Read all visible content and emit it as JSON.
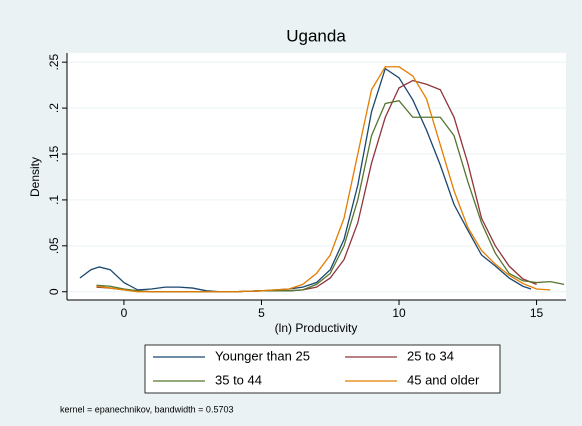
{
  "chart_data": {
    "type": "line",
    "title": "Uganda",
    "xlabel": "(ln) Productivity",
    "ylabel": "Density",
    "note": "kernel = epanechnikov, bandwidth = 0.5703",
    "xlim": [
      -2.07,
      16.07
    ],
    "xticks": [
      0,
      5,
      10,
      15
    ],
    "ylim": [
      -0.009,
      0.26
    ],
    "yticks": [
      0,
      {
        "value": 0.05,
        "label": ".05"
      },
      {
        "value": 0.1,
        "label": ".1"
      },
      {
        "value": 0.15,
        "label": ".15"
      },
      {
        "value": 0.2,
        "label": ".2"
      },
      {
        "value": 0.25,
        "label": ".25"
      }
    ],
    "grid": true,
    "legend": "bottom",
    "series": [
      {
        "name": "Younger than 25",
        "color": "#1a476f",
        "x": [
          -1.6,
          -1.2,
          -0.9,
          -0.5,
          0,
          0.5,
          1,
          1.5,
          2,
          2.5,
          3,
          3.5,
          4,
          5,
          6,
          6.5,
          7,
          7.5,
          8,
          8.5,
          9,
          9.5,
          10,
          10.5,
          11,
          11.5,
          12,
          12.5,
          13,
          13.5,
          14,
          14.5,
          14.8
        ],
        "values": [
          0.015,
          0.024,
          0.027,
          0.024,
          0.01,
          0.002,
          0.003,
          0.005,
          0.005,
          0.004,
          0.001,
          0,
          0,
          0.001,
          0.003,
          0.005,
          0.01,
          0.024,
          0.057,
          0.116,
          0.196,
          0.243,
          0.233,
          0.209,
          0.176,
          0.138,
          0.095,
          0.067,
          0.04,
          0.028,
          0.015,
          0.006,
          0.003
        ]
      },
      {
        "name": "25 to 34",
        "color": "#90353b",
        "x": [
          -1,
          -0.5,
          0,
          0.5,
          1,
          2,
          3,
          4,
          5,
          6,
          6.5,
          7,
          7.5,
          8,
          8.5,
          9,
          9.5,
          10,
          10.5,
          11,
          11.5,
          12,
          12.5,
          13,
          13.5,
          14,
          14.5,
          15
        ],
        "values": [
          0.005,
          0.004,
          0.002,
          0.001,
          0,
          0,
          0,
          0,
          0.001,
          0.001,
          0.002,
          0.005,
          0.015,
          0.035,
          0.075,
          0.14,
          0.19,
          0.222,
          0.23,
          0.226,
          0.22,
          0.19,
          0.14,
          0.08,
          0.05,
          0.028,
          0.014,
          0.008
        ]
      },
      {
        "name": "35 to 44",
        "color": "#55752f",
        "x": [
          -1,
          -0.5,
          0,
          0.5,
          1,
          2,
          3,
          4,
          5,
          6,
          6.5,
          7,
          7.5,
          8,
          8.5,
          9,
          9.5,
          10,
          10.5,
          11,
          11.5,
          12,
          12.5,
          13,
          13.5,
          14,
          14.5,
          15,
          15.5,
          16
        ],
        "values": [
          0.007,
          0.006,
          0.003,
          0.001,
          0,
          0,
          0,
          0,
          0.001,
          0.001,
          0.002,
          0.008,
          0.02,
          0.05,
          0.1,
          0.17,
          0.205,
          0.208,
          0.19,
          0.19,
          0.19,
          0.17,
          0.12,
          0.075,
          0.042,
          0.02,
          0.012,
          0.01,
          0.011,
          0.008
        ]
      },
      {
        "name": "45 and older",
        "color": "#e37e00",
        "x": [
          -1,
          -0.5,
          0,
          0.5,
          1,
          2,
          3,
          4,
          5,
          6,
          6.5,
          7,
          7.5,
          8,
          8.5,
          9,
          9.5,
          10,
          10.5,
          11,
          11.5,
          12,
          12.5,
          13,
          13.5,
          14,
          14.5,
          15,
          15.5
        ],
        "values": [
          0.006,
          0.004,
          0.002,
          0,
          0,
          0,
          0,
          0,
          0.001,
          0.003,
          0.008,
          0.02,
          0.04,
          0.08,
          0.15,
          0.22,
          0.245,
          0.245,
          0.235,
          0.21,
          0.16,
          0.11,
          0.07,
          0.045,
          0.03,
          0.018,
          0.009,
          0.003,
          0.002
        ]
      }
    ]
  }
}
